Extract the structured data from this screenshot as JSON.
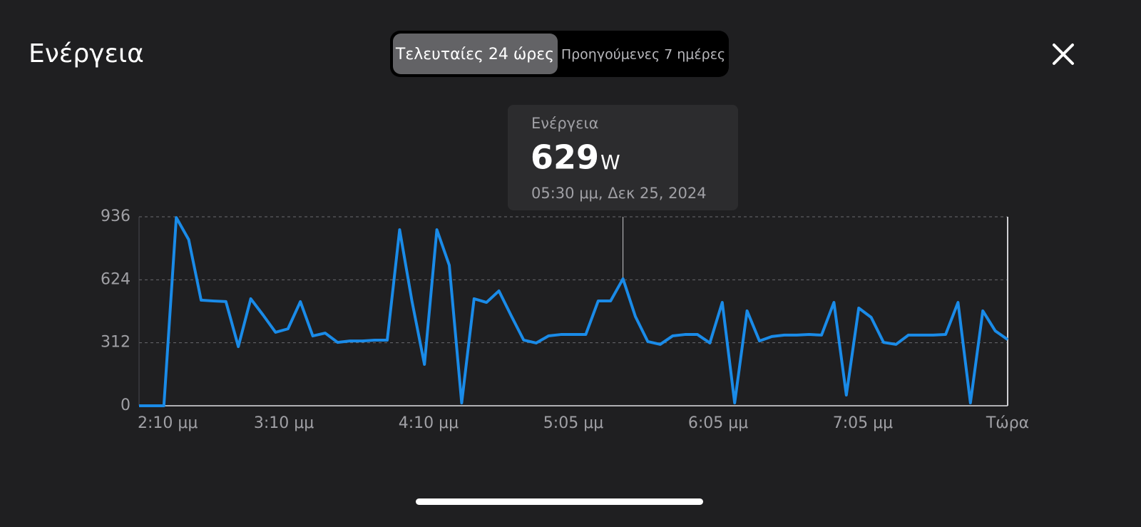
{
  "header": {
    "title": "Ενέργεια"
  },
  "segmented": {
    "options": [
      "Τελευταίες 24 ώρες",
      "Προηγούμενες 7 ημέρες"
    ],
    "selected": 0
  },
  "tooltip": {
    "label": "Ενέργεια",
    "value": 629,
    "unit": "W",
    "time": "05:30 μμ, Δεκ 25, 2024"
  },
  "chart_data": {
    "type": "line",
    "color": "#1a8be8",
    "grid": true,
    "values": [
      0,
      0,
      0,
      932,
      823,
      523,
      519,
      516,
      293,
      530,
      449,
      364,
      381,
      516,
      346,
      360,
      314,
      321,
      321,
      325,
      325,
      872,
      516,
      205,
      872,
      696,
      14,
      530,
      512,
      569,
      445,
      325,
      311,
      346,
      353,
      353,
      353,
      519,
      519,
      629,
      442,
      318,
      304,
      346,
      353,
      353,
      311,
      512,
      14,
      470,
      321,
      343,
      350,
      350,
      353,
      350,
      512,
      53,
      484,
      438,
      314,
      304,
      350,
      350,
      350,
      353,
      512,
      14,
      470,
      371,
      328
    ],
    "xlim": [
      0,
      70
    ],
    "xticks": [
      {
        "value": 0,
        "label": "2:10 μμ"
      },
      {
        "value": 11.67,
        "label": "3:10 μμ"
      },
      {
        "value": 23.33,
        "label": "4:10 μμ"
      },
      {
        "value": 35,
        "label": "5:05 μμ"
      },
      {
        "value": 46.67,
        "label": "6:05 μμ"
      },
      {
        "value": 58.33,
        "label": "7:05 μμ"
      },
      {
        "value": 70,
        "label": "Τώρα"
      }
    ],
    "ylim": [
      0,
      936
    ],
    "yticks": [
      0,
      312,
      624,
      936
    ]
  }
}
